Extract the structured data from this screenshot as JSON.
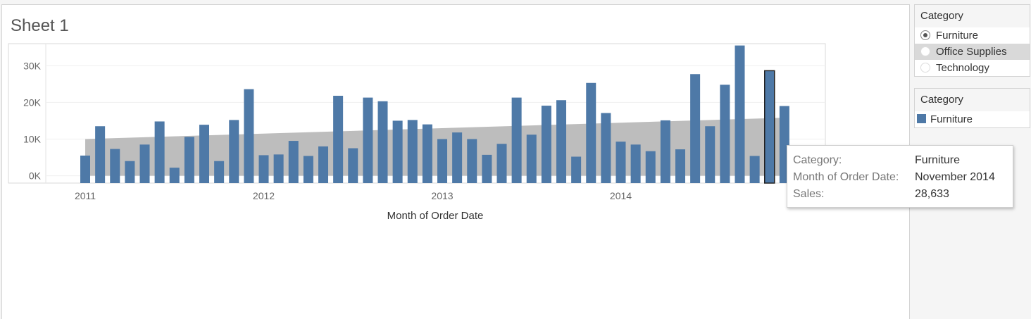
{
  "sheet": {
    "title": "Sheet 1"
  },
  "colors": {
    "bar": "#4e79a7",
    "band": "#bdbdbd",
    "highlight_outline": "#222222"
  },
  "chart_data": {
    "type": "bar",
    "title": "",
    "xlabel": "Month of Order Date",
    "ylabel": "",
    "ylim": [
      -2000,
      36000
    ],
    "yticks": [
      0,
      10000,
      20000,
      30000
    ],
    "ytick_labels": [
      "0K",
      "10K",
      "20K",
      "30K"
    ],
    "year_labels": [
      "2011",
      "2012",
      "2013",
      "2014"
    ],
    "grid": true,
    "series": [
      {
        "values": [
          5500,
          13500,
          7300,
          4000,
          8500,
          14800,
          2200,
          10600,
          13900,
          4000,
          15200,
          23600,
          5600,
          5800,
          9500,
          5400,
          8000,
          21800,
          7500,
          21300,
          20300,
          15000,
          15200,
          14000,
          10000,
          11800,
          10000,
          5700,
          8700,
          21300,
          11200,
          19100,
          20600,
          5200,
          25300,
          17100,
          9300,
          8500,
          6700,
          15100,
          7200,
          27700,
          13500,
          24800,
          35500,
          5400,
          28633,
          19000
        ],
        "start_month": "2011-01"
      }
    ],
    "reference_band": {
      "from": [
        0,
        10000
      ],
      "to": [
        0,
        15800
      ]
    },
    "highlighted": {
      "index": 46
    }
  },
  "tooltip": {
    "rows": [
      {
        "key": "Category:",
        "value": "Furniture"
      },
      {
        "key": "Month of Order Date:",
        "value": "November 2014"
      },
      {
        "key": "Sales:",
        "value": "28,633"
      }
    ]
  },
  "filter": {
    "title": "Category",
    "options": [
      {
        "label": "Furniture",
        "selected": true
      },
      {
        "label": "Office Supplies",
        "selected": false
      },
      {
        "label": "Technology",
        "selected": false
      }
    ]
  },
  "legend": {
    "title": "Category",
    "items": [
      {
        "label": "Furniture",
        "color": "#4e79a7"
      }
    ]
  }
}
